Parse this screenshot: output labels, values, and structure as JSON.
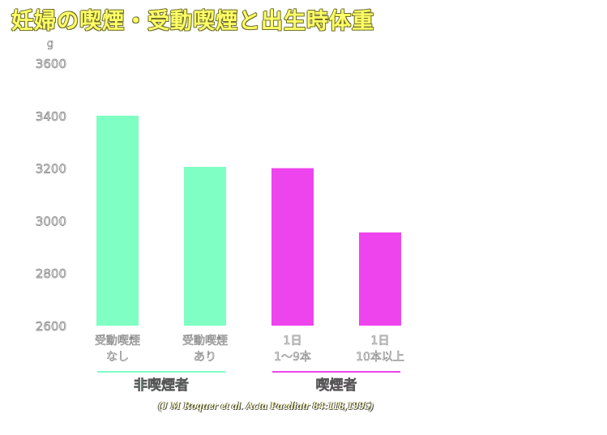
{
  "title": "妊婦の喫煙・受動喫煙と出生時体重",
  "citation": "(J M Roquer et al. Acta Paediatr 84:118,1995)",
  "colors": {
    "nonsmoker": "#7fffc3",
    "smoker": "#ee44ee",
    "title": "#ffff66"
  },
  "chart_data": {
    "type": "bar",
    "ylabel": "g",
    "ylim": [
      2600,
      3600
    ],
    "yticks": [
      "3600",
      "3400",
      "3200",
      "3000",
      "2800",
      "2600"
    ],
    "categories": [
      {
        "line1": "受動喫煙",
        "line2": "なし",
        "group": "nonsmoker"
      },
      {
        "line1": "受動喫煙",
        "line2": "あり",
        "group": "nonsmoker"
      },
      {
        "line1": "1日",
        "line2": "1～9本",
        "group": "smoker"
      },
      {
        "line1": "1日",
        "line2": "10本以上",
        "group": "smoker"
      }
    ],
    "values": [
      3400,
      3205,
      3200,
      2955
    ],
    "groups": [
      {
        "key": "nonsmoker",
        "label": "非喫煙者"
      },
      {
        "key": "smoker",
        "label": "喫煙者"
      }
    ]
  }
}
